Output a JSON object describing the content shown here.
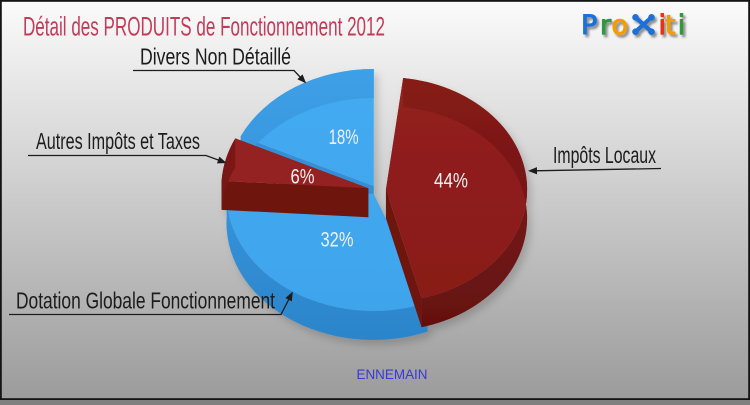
{
  "title": "Détail des PRODUITS de Fonctionnement 2012",
  "title_color": "#c13b5b",
  "footer": "ENNEMAIN",
  "footer_color": "#3838dc",
  "logo": {
    "name": "Proxiti",
    "letters": [
      {
        "ch": "P",
        "color": "#1f71d8"
      },
      {
        "ch": "r",
        "color": "#2f9a3c"
      },
      {
        "ch": "o",
        "color": "#f49c00"
      },
      {
        "ch": "x",
        "color": "#1f71d8"
      },
      {
        "ch": "i",
        "color": "#e63312"
      },
      {
        "ch": "t",
        "color": "#f49c00"
      },
      {
        "ch": "i",
        "color": "#2f9a3c"
      }
    ]
  },
  "chart_data": {
    "type": "pie",
    "title": "Détail des PRODUITS de Fonctionnement 2012",
    "legend_position": "callouts",
    "style": "3d-exploded",
    "slices": [
      {
        "label": "Impôts Locaux",
        "value": 44,
        "pct_label": "44%",
        "color": "#8e1e1c"
      },
      {
        "label": "Dotation Globale Fonctionnement",
        "value": 32,
        "pct_label": "32%",
        "color": "#41a9f0"
      },
      {
        "label": "Autres Impôts et Taxes",
        "value": 6,
        "pct_label": "6%",
        "color": "#8e1e1c"
      },
      {
        "label": "Divers Non Détaillé",
        "value": 18,
        "pct_label": "18%",
        "color": "#41a9f0"
      }
    ]
  }
}
